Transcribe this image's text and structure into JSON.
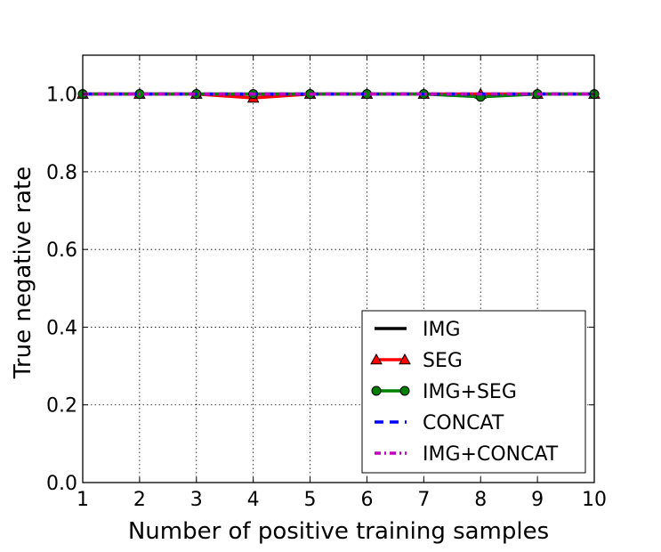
{
  "chart_data": {
    "type": "line",
    "title": "",
    "xlabel": "Number of positive training samples",
    "ylabel": "True negative rate",
    "xlim": [
      1,
      10
    ],
    "ylim": [
      0.0,
      1.1
    ],
    "grid": true,
    "legend_position": "lower-right",
    "x": [
      1,
      2,
      3,
      4,
      5,
      6,
      7,
      8,
      9,
      10
    ],
    "x_ticks": [
      "1",
      "2",
      "3",
      "4",
      "5",
      "6",
      "7",
      "8",
      "9",
      "10"
    ],
    "y_ticks": [
      {
        "value": 0.0,
        "label": "0.0"
      },
      {
        "value": 0.2,
        "label": "0.2"
      },
      {
        "value": 0.4,
        "label": "0.4"
      },
      {
        "value": 0.6,
        "label": "0.6"
      },
      {
        "value": 0.8,
        "label": "0.8"
      },
      {
        "value": 1.0,
        "label": "1.0"
      }
    ],
    "series": [
      {
        "name": "IMG",
        "color": "#000000",
        "style": "solid",
        "marker": "none",
        "values": [
          1.0,
          1.0,
          1.0,
          1.0,
          1.0,
          1.0,
          1.0,
          1.0,
          1.0,
          1.0
        ]
      },
      {
        "name": "SEG",
        "color": "#ff0000",
        "style": "solid",
        "marker": "triangle",
        "values": [
          1.0,
          1.0,
          1.0,
          0.99,
          1.0,
          1.0,
          1.0,
          1.0,
          1.0,
          1.0
        ]
      },
      {
        "name": "IMG+SEG",
        "color": "#008000",
        "style": "solid",
        "marker": "circle",
        "values": [
          1.0,
          1.0,
          1.0,
          1.0,
          1.0,
          1.0,
          1.0,
          0.993,
          1.0,
          1.0
        ]
      },
      {
        "name": "CONCAT",
        "color": "#0000ff",
        "style": "dashed",
        "marker": "none",
        "values": [
          1.0,
          1.0,
          1.0,
          1.0,
          1.0,
          1.0,
          1.0,
          1.0,
          1.0,
          1.0
        ]
      },
      {
        "name": "IMG+CONCAT",
        "color": "#bf00bf",
        "style": "dashdot",
        "marker": "none",
        "values": [
          1.0,
          1.0,
          1.0,
          1.0,
          1.0,
          1.0,
          1.0,
          1.0,
          1.0,
          1.0
        ]
      }
    ]
  }
}
